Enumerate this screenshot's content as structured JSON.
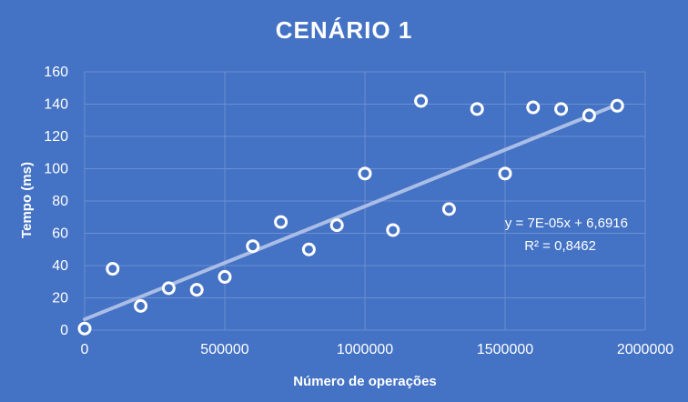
{
  "chart_data": {
    "type": "scatter",
    "title": "CENÁRIO 1",
    "xlabel": "Número de operações",
    "ylabel": "Tempo (ms)",
    "xlim": [
      0,
      2000000
    ],
    "ylim": [
      0,
      160
    ],
    "x_ticks": [
      0,
      500000,
      1000000,
      1500000,
      2000000
    ],
    "y_ticks": [
      0,
      20,
      40,
      60,
      80,
      100,
      120,
      140,
      160
    ],
    "x_tick_labels": [
      "0",
      "500000",
      "1000000",
      "1500000",
      "2000000"
    ],
    "y_tick_labels": [
      "0",
      "20",
      "40",
      "60",
      "80",
      "100",
      "120",
      "140",
      "160"
    ],
    "grid": true,
    "series": [
      {
        "x": [
          0,
          100000,
          200000,
          300000,
          400000,
          500000,
          600000,
          700000,
          800000,
          900000,
          1000000,
          1100000,
          1200000,
          1300000,
          1400000,
          1500000,
          1600000,
          1700000,
          1800000,
          1900000
        ],
        "y": [
          1,
          38,
          15,
          26,
          25,
          33,
          52,
          67,
          50,
          65,
          97,
          62,
          142,
          75,
          137,
          97,
          138,
          137,
          133,
          139
        ]
      }
    ],
    "trendline": {
      "type": "linear",
      "x_range": [
        0,
        1900000
      ],
      "slope": 7e-05,
      "intercept": 6.6916,
      "equation": "y = 7E-05x + 6,6916",
      "r_squared": "R² = 0,8462"
    },
    "colors": {
      "background": "#4472c4",
      "gridline": "#6d8fd0",
      "marker_stroke": "#ffffff",
      "trendline": "#a9bde6",
      "text": "#ffffff"
    }
  }
}
